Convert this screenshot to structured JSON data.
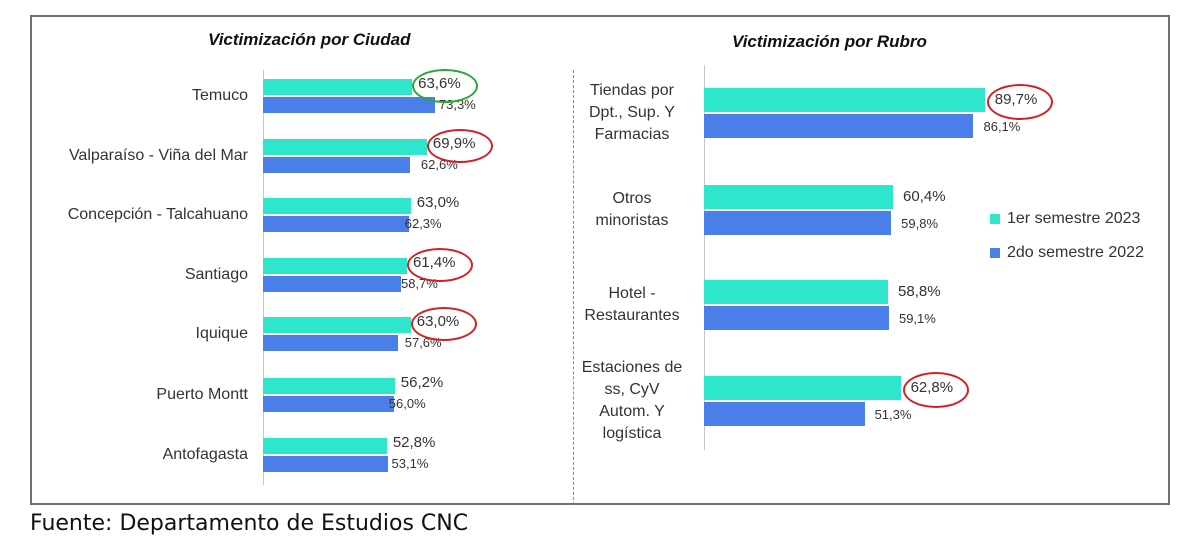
{
  "colors": {
    "series_2023": "#2ee6cc",
    "series_2022": "#4a7ee8",
    "highlight_red": "#d42020",
    "highlight_green": "#2aa63a"
  },
  "legend": [
    "1er semestre 2023",
    "2do semestre 2022"
  ],
  "source": "Fuente: Departamento de Estudios CNC",
  "chart_data": [
    {
      "type": "bar",
      "orientation": "horizontal",
      "title": "Victimización por Ciudad",
      "categories": [
        "Temuco",
        "Valparaíso - Viña del Mar",
        "Concepción - Talcahuano",
        "Santiago",
        "Iquique",
        "Puerto Montt",
        "Antofagasta"
      ],
      "series": [
        {
          "name": "1er semestre 2023",
          "values": [
            63.6,
            69.9,
            63.0,
            61.4,
            63.0,
            56.2,
            52.8
          ],
          "labels": [
            "63,6%",
            "69,9%",
            "63,0%",
            "61,4%",
            "63,0%",
            "56,2%",
            "52,8%"
          ]
        },
        {
          "name": "2do semestre 2022",
          "values": [
            73.3,
            62.6,
            62.3,
            58.7,
            57.6,
            56.0,
            53.1
          ],
          "labels": [
            "73,3%",
            "62,6%",
            "62,3%",
            "58,7%",
            "57,6%",
            "56,0%",
            "53,1%"
          ]
        }
      ],
      "highlights": [
        {
          "category": "Temuco",
          "color": "green"
        },
        {
          "category": "Valparaíso - Viña del Mar",
          "color": "red"
        },
        {
          "category": "Santiago",
          "color": "red"
        },
        {
          "category": "Iquique",
          "color": "red"
        }
      ]
    },
    {
      "type": "bar",
      "orientation": "horizontal",
      "title": "Victimización por Rubro",
      "categories": [
        "Tiendas por Dpt., Sup. Y Farmacias",
        "Otros minoristas",
        "Hotel - Restaurantes",
        "Estaciones de ss, CyV Autom. Y logística"
      ],
      "category_lines": [
        [
          "Tiendas por",
          "Dpt., Sup. Y",
          "Farmacias"
        ],
        [
          "Otros",
          "minoristas"
        ],
        [
          "Hotel -",
          "Restaurantes"
        ],
        [
          "Estaciones de",
          "ss, CyV",
          "Autom. Y",
          "logística"
        ]
      ],
      "series": [
        {
          "name": "1er semestre 2023",
          "values": [
            89.7,
            60.4,
            58.8,
            62.8
          ],
          "labels": [
            "89,7%",
            "60,4%",
            "58,8%",
            "62,8%"
          ]
        },
        {
          "name": "2do semestre 2022",
          "values": [
            86.1,
            59.8,
            59.1,
            51.3
          ],
          "labels": [
            "86,1%",
            "59,8%",
            "59,1%",
            "51,3%"
          ]
        }
      ],
      "highlights": [
        {
          "category": "Tiendas por Dpt., Sup. Y Farmacias",
          "color": "red"
        },
        {
          "category": "Estaciones de ss, CyV Autom. Y logística",
          "color": "red"
        }
      ]
    }
  ]
}
